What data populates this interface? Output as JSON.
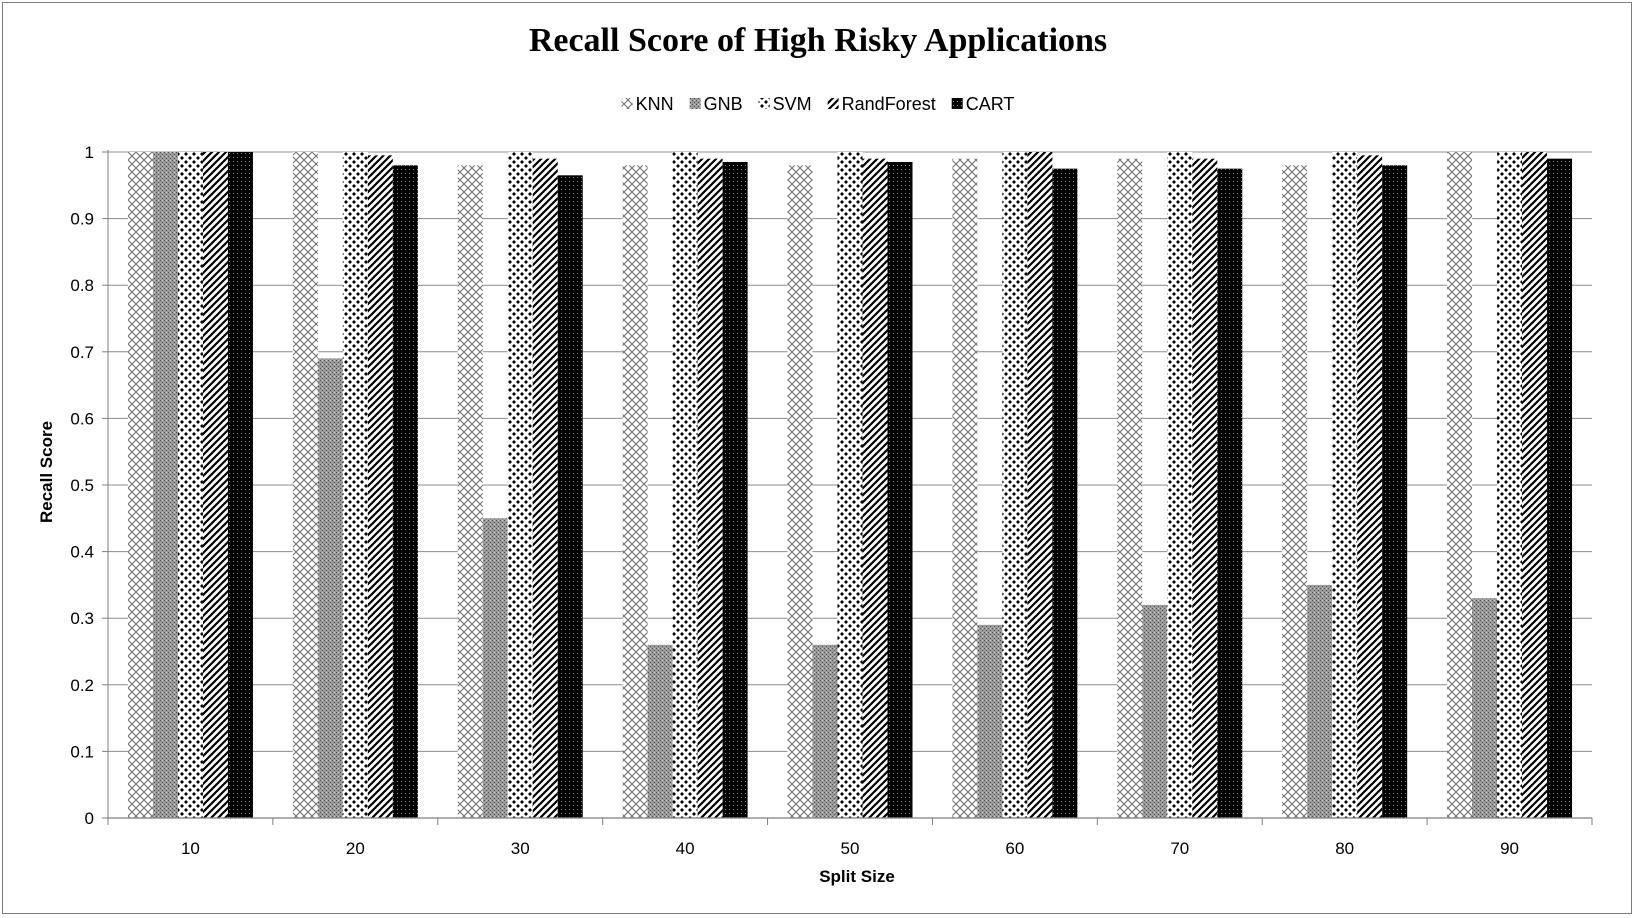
{
  "chart_data": {
    "type": "bar",
    "title": "Recall Score of High Risky Applications",
    "xlabel": "Split Size",
    "ylabel": "Recall Score",
    "categories": [
      "10",
      "20",
      "30",
      "40",
      "50",
      "60",
      "70",
      "80",
      "90"
    ],
    "ylim": [
      0,
      1
    ],
    "yticks": [
      "0",
      "0.1",
      "0.2",
      "0.3",
      "0.4",
      "0.5",
      "0.6",
      "0.7",
      "0.8",
      "0.9",
      "1"
    ],
    "grid": true,
    "legend_position": "top",
    "series": [
      {
        "name": "KNN",
        "pattern": "crosshatch",
        "values": [
          1.0,
          1.0,
          0.98,
          0.98,
          0.98,
          0.99,
          0.99,
          0.98,
          1.0
        ]
      },
      {
        "name": "GNB",
        "pattern": "gray-stipple",
        "values": [
          1.0,
          0.69,
          0.45,
          0.26,
          0.26,
          0.29,
          0.32,
          0.35,
          0.33
        ]
      },
      {
        "name": "SVM",
        "pattern": "diamond-dots",
        "values": [
          1.0,
          1.0,
          1.0,
          1.0,
          1.0,
          1.0,
          1.0,
          1.0,
          1.0
        ]
      },
      {
        "name": "RandForest",
        "pattern": "diagonal-stripes",
        "values": [
          1.0,
          0.995,
          0.99,
          0.99,
          0.99,
          1.0,
          0.99,
          0.995,
          1.0
        ]
      },
      {
        "name": "CART",
        "pattern": "black-dots",
        "values": [
          1.0,
          0.98,
          0.965,
          0.985,
          0.985,
          0.975,
          0.975,
          0.98,
          0.99
        ]
      }
    ]
  }
}
